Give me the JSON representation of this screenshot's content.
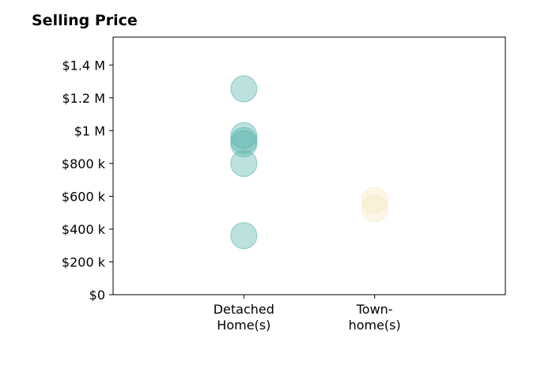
{
  "chart_data": {
    "type": "scatter",
    "title": "Selling Price",
    "xlabel": "",
    "ylabel": "",
    "categories": [
      {
        "label_lines": [
          "Detached",
          "Home(s)"
        ]
      },
      {
        "label_lines": [
          "Town-",
          "home(s)"
        ]
      }
    ],
    "y_ticks": [
      {
        "value": 0,
        "label": "$0"
      },
      {
        "value": 200000,
        "label": "$200 k"
      },
      {
        "value": 400000,
        "label": "$400 k"
      },
      {
        "value": 600000,
        "label": "$600 k"
      },
      {
        "value": 800000,
        "label": "$800 k"
      },
      {
        "value": 1000000,
        "label": "$1 M"
      },
      {
        "value": 1200000,
        "label": "$1.2 M"
      },
      {
        "value": 1400000,
        "label": "$1.4 M"
      }
    ],
    "ylim": [
      0,
      1570000
    ],
    "xlim": [
      -1,
      2
    ],
    "grid": false,
    "series": [
      {
        "category_index": 0,
        "color": "#5ab4ac",
        "values": [
          1255000,
          970000,
          940000,
          920000,
          800000,
          360000
        ]
      },
      {
        "category_index": 1,
        "color": "#f6e8c3",
        "values": [
          575000,
          525000
        ]
      }
    ]
  }
}
